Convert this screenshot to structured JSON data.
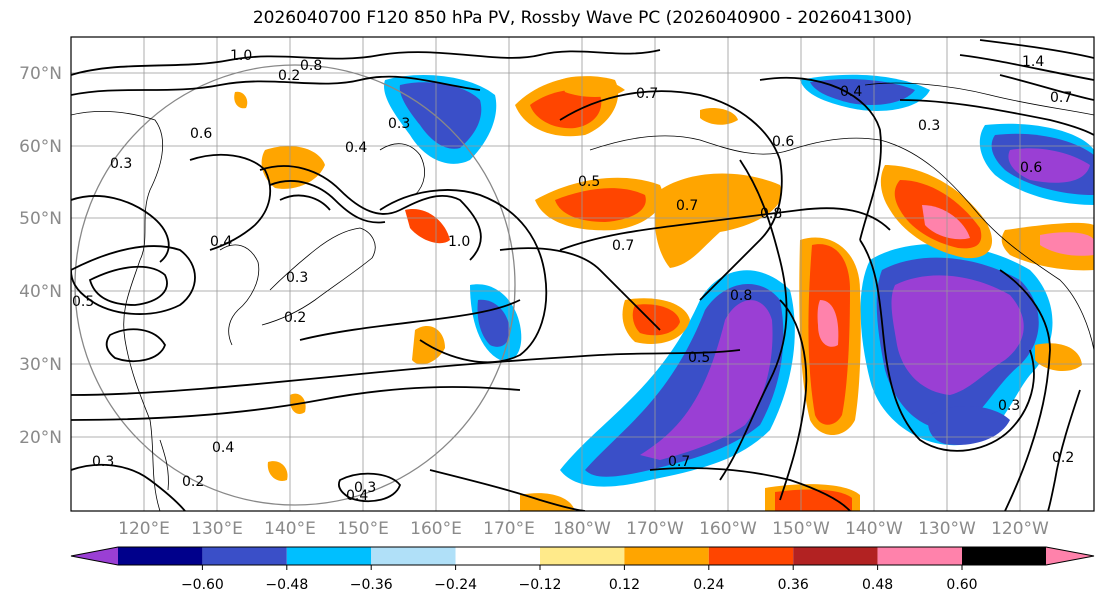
{
  "title": "2026040700 F120 850 hPa PV, Rossby Wave PC (2026040900 - 2026041300)",
  "map": {
    "lat_labels": [
      "70°N",
      "60°N",
      "50°N",
      "40°N",
      "30°N",
      "20°N"
    ],
    "lon_labels": [
      "120°E",
      "130°E",
      "140°E",
      "150°E",
      "160°E",
      "170°E",
      "180°W",
      "170°W",
      "160°W",
      "150°W",
      "140°W",
      "130°W",
      "120°W"
    ],
    "contour_labels": [
      "1.0",
      "0.8",
      "0.6",
      "0.4",
      "0.3",
      "0.5",
      "0.7",
      "0.8",
      "0.4",
      "0.3",
      "0.6",
      "1.0",
      "0.4",
      "0.3",
      "0.2",
      "0.5",
      "0.3",
      "0.2",
      "0.7",
      "0.5",
      "0.7",
      "0.8",
      "0.6",
      "0.3",
      "0.2",
      "0.3",
      "0.4",
      "0.2",
      "0.7",
      "1.4",
      "0.7",
      "0.4",
      "0.3"
    ]
  },
  "colorbar": {
    "ticks": [
      "−0.60",
      "−0.48",
      "−0.36",
      "−0.24",
      "−0.12",
      "0.12",
      "0.24",
      "0.36",
      "0.48",
      "0.60"
    ],
    "colors": [
      "#9a3fd4",
      "#00008b",
      "#3a4fc8",
      "#00bfff",
      "#b0e0f8",
      "#ffffff",
      "#ffea8a",
      "#ffa500",
      "#ff4500",
      "#b22222",
      "#ff82ab"
    ]
  }
}
